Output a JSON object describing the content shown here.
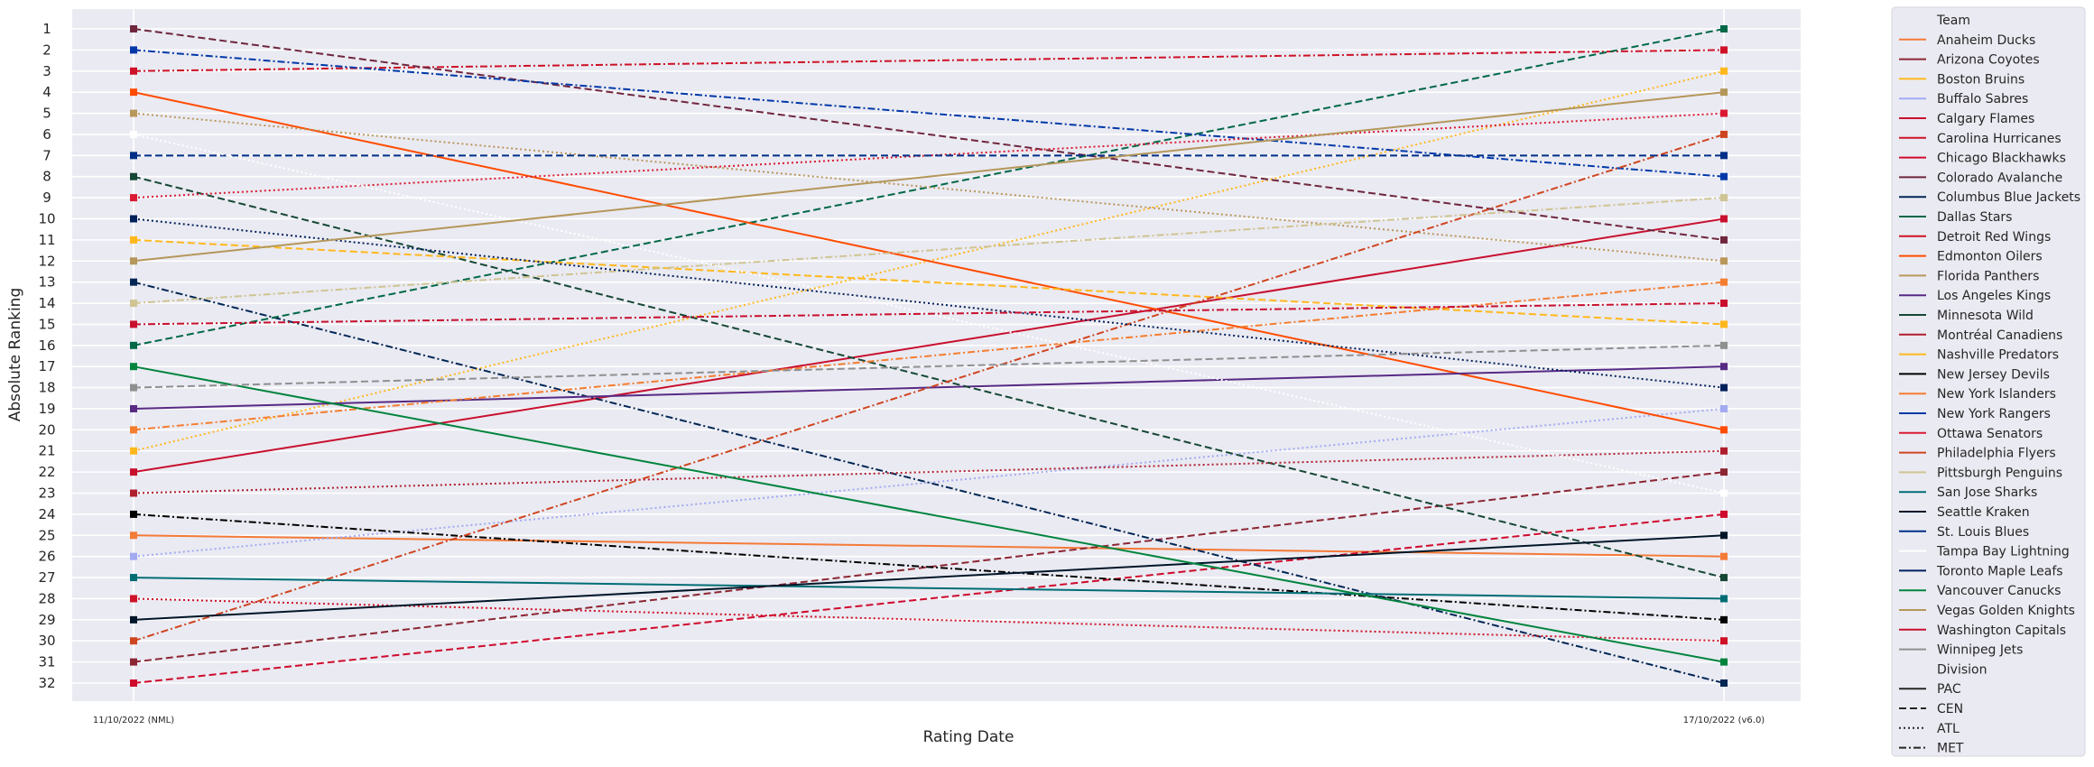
{
  "chart_data": {
    "type": "line",
    "title": "",
    "xlabel": "Rating Date",
    "ylabel": "Absolute Ranking",
    "categories": [
      "11/10/2022 (NML)",
      "17/10/2022 (v6.0)"
    ],
    "ylim": [
      1,
      32
    ],
    "y_inverted": true,
    "y_ticks": [
      1,
      2,
      3,
      4,
      5,
      6,
      7,
      8,
      9,
      10,
      11,
      12,
      13,
      14,
      15,
      16,
      17,
      18,
      19,
      20,
      21,
      22,
      23,
      24,
      25,
      26,
      27,
      28,
      29,
      30,
      31,
      32
    ],
    "grid": true,
    "legend_position": "outside-right",
    "legend": {
      "team_title": "Team",
      "division_title": "Division",
      "divisions": [
        {
          "name": "PAC",
          "dash": "solid"
        },
        {
          "name": "CEN",
          "dash": "dashed"
        },
        {
          "name": "ATL",
          "dash": "dotted"
        },
        {
          "name": "MET",
          "dash": "dashdot"
        }
      ]
    },
    "series": [
      {
        "name": "Anaheim Ducks",
        "division": "PAC",
        "color": "#F47A38",
        "values": [
          25,
          26
        ]
      },
      {
        "name": "Arizona Coyotes",
        "division": "CEN",
        "color": "#8C2633",
        "values": [
          31,
          22
        ]
      },
      {
        "name": "Boston Bruins",
        "division": "ATL",
        "color": "#FFB81C",
        "values": [
          21,
          3
        ]
      },
      {
        "name": "Buffalo Sabres",
        "division": "ATL",
        "color": "#A2AAF2",
        "values": [
          26,
          19
        ]
      },
      {
        "name": "Calgary Flames",
        "division": "PAC",
        "color": "#C8102E",
        "values": [
          22,
          10
        ]
      },
      {
        "name": "Carolina Hurricanes",
        "division": "MET",
        "color": "#CE1126",
        "values": [
          3,
          2
        ]
      },
      {
        "name": "Chicago Blackhawks",
        "division": "CEN",
        "color": "#CF0A2C",
        "values": [
          32,
          24
        ]
      },
      {
        "name": "Colorado Avalanche",
        "division": "CEN",
        "color": "#6F263D",
        "values": [
          1,
          11
        ]
      },
      {
        "name": "Columbus Blue Jackets",
        "division": "MET",
        "color": "#002654",
        "values": [
          13,
          32
        ]
      },
      {
        "name": "Dallas Stars",
        "division": "CEN",
        "color": "#006847",
        "values": [
          16,
          1
        ]
      },
      {
        "name": "Detroit Red Wings",
        "division": "ATL",
        "color": "#CE1126",
        "values": [
          28,
          30
        ]
      },
      {
        "name": "Edmonton Oilers",
        "division": "PAC",
        "color": "#FF4C00",
        "values": [
          4,
          20
        ]
      },
      {
        "name": "Florida Panthers",
        "division": "ATL",
        "color": "#B9975B",
        "values": [
          5,
          12
        ]
      },
      {
        "name": "Los Angeles Kings",
        "division": "PAC",
        "color": "#572A84",
        "values": [
          19,
          17
        ]
      },
      {
        "name": "Minnesota Wild",
        "division": "CEN",
        "color": "#154734",
        "values": [
          8,
          27
        ]
      },
      {
        "name": "Montréal Canadiens",
        "division": "ATL",
        "color": "#AF1E2D",
        "values": [
          23,
          21
        ]
      },
      {
        "name": "Nashville Predators",
        "division": "CEN",
        "color": "#FFB81C",
        "values": [
          11,
          15
        ]
      },
      {
        "name": "New Jersey Devils",
        "division": "MET",
        "color": "#000000",
        "values": [
          24,
          29
        ]
      },
      {
        "name": "New York Islanders",
        "division": "MET",
        "color": "#F47D30",
        "values": [
          20,
          13
        ]
      },
      {
        "name": "New York Rangers",
        "division": "MET",
        "color": "#0038A8",
        "values": [
          2,
          8
        ]
      },
      {
        "name": "Ottawa Senators",
        "division": "ATL",
        "color": "#DA1A32",
        "values": [
          9,
          5
        ]
      },
      {
        "name": "Philadelphia Flyers",
        "division": "MET",
        "color": "#CF4520",
        "values": [
          30,
          6
        ]
      },
      {
        "name": "Pittsburgh Penguins",
        "division": "MET",
        "color": "#CFC493",
        "values": [
          14,
          9
        ]
      },
      {
        "name": "San Jose Sharks",
        "division": "PAC",
        "color": "#006D75",
        "values": [
          27,
          28
        ]
      },
      {
        "name": "Seattle Kraken",
        "division": "PAC",
        "color": "#001628",
        "values": [
          29,
          25
        ]
      },
      {
        "name": "St. Louis Blues",
        "division": "CEN",
        "color": "#002F87",
        "values": [
          7,
          7
        ]
      },
      {
        "name": "Tampa Bay Lightning",
        "division": "ATL",
        "color": "#FFFFFF",
        "values": [
          6,
          23
        ]
      },
      {
        "name": "Toronto Maple Leafs",
        "division": "ATL",
        "color": "#00205B",
        "values": [
          10,
          18
        ]
      },
      {
        "name": "Vancouver Canucks",
        "division": "PAC",
        "color": "#00843D",
        "values": [
          17,
          31
        ]
      },
      {
        "name": "Vegas Golden Knights",
        "division": "PAC",
        "color": "#B4975A",
        "values": [
          12,
          4
        ]
      },
      {
        "name": "Washington Capitals",
        "division": "MET",
        "color": "#C8102E",
        "values": [
          15,
          14
        ]
      },
      {
        "name": "Winnipeg Jets",
        "division": "CEN",
        "color": "#8E9090",
        "values": [
          18,
          16
        ]
      }
    ]
  }
}
